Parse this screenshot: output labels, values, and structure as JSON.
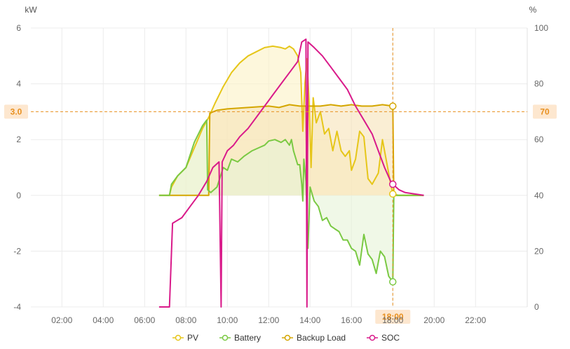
{
  "chart_data": {
    "type": "area",
    "y_left_unit": "kW",
    "y_right_unit": "%",
    "x_ticks": [
      "02:00",
      "04:00",
      "06:00",
      "08:00",
      "10:00",
      "12:00",
      "14:00",
      "16:00",
      "18:00",
      "20:00",
      "22:00"
    ],
    "y_left_ticks": [
      6,
      4,
      2,
      0,
      -2,
      -4
    ],
    "y_right_ticks": [
      100,
      80,
      60,
      40,
      20,
      0
    ],
    "ylim_left": [
      -4,
      6
    ],
    "ylim_right": [
      0,
      100
    ],
    "xlim_hours": [
      0.5,
      24.5
    ],
    "crosshair": {
      "x_label": "18:00",
      "x_hour": 18.0,
      "y_left_label": "3.0",
      "y_left": 3.0,
      "y_right_label": "70",
      "y_right": 70
    },
    "grid": true,
    "legend_position": "bottom",
    "series": [
      {
        "name": "PV",
        "axis": "left",
        "color": "#e6c619",
        "fill": "#fbf2c4",
        "points": [
          [
            6.7,
            0
          ],
          [
            7.2,
            0
          ],
          [
            7.3,
            0.3
          ],
          [
            7.6,
            0.7
          ],
          [
            8.0,
            1.0
          ],
          [
            8.4,
            1.7
          ],
          [
            8.8,
            2.4
          ],
          [
            9.1,
            2.8
          ],
          [
            9.4,
            3.3
          ],
          [
            9.8,
            3.9
          ],
          [
            10.2,
            4.4
          ],
          [
            10.6,
            4.75
          ],
          [
            11.0,
            5.0
          ],
          [
            11.4,
            5.15
          ],
          [
            11.8,
            5.3
          ],
          [
            12.2,
            5.35
          ],
          [
            12.6,
            5.3
          ],
          [
            12.8,
            5.25
          ],
          [
            13.0,
            5.35
          ],
          [
            13.2,
            5.25
          ],
          [
            13.4,
            5.0
          ],
          [
            13.55,
            4.4
          ],
          [
            13.65,
            2.3
          ],
          [
            13.75,
            4.0
          ],
          [
            13.85,
            4.9
          ],
          [
            13.95,
            3.4
          ],
          [
            14.05,
            1.0
          ],
          [
            14.15,
            3.5
          ],
          [
            14.3,
            2.6
          ],
          [
            14.5,
            3.0
          ],
          [
            14.7,
            2.2
          ],
          [
            14.9,
            2.4
          ],
          [
            15.1,
            1.6
          ],
          [
            15.3,
            2.3
          ],
          [
            15.5,
            1.6
          ],
          [
            15.7,
            1.4
          ],
          [
            15.9,
            1.6
          ],
          [
            16.0,
            0.9
          ],
          [
            16.2,
            1.3
          ],
          [
            16.4,
            2.3
          ],
          [
            16.6,
            2.1
          ],
          [
            16.8,
            0.6
          ],
          [
            17.0,
            0.4
          ],
          [
            17.3,
            0.8
          ],
          [
            17.5,
            2.0
          ],
          [
            17.7,
            1.2
          ],
          [
            17.9,
            0.4
          ],
          [
            18.0,
            0.05
          ],
          [
            18.3,
            0
          ],
          [
            19.5,
            0
          ]
        ]
      },
      {
        "name": "Battery",
        "axis": "left",
        "color": "#7ac943",
        "fill": "#e6f4d7",
        "points": [
          [
            6.7,
            0
          ],
          [
            7.2,
            0
          ],
          [
            7.3,
            0.4
          ],
          [
            7.6,
            0.7
          ],
          [
            8.0,
            1.0
          ],
          [
            8.4,
            1.9
          ],
          [
            8.8,
            2.5
          ],
          [
            9.0,
            2.7
          ],
          [
            9.05,
            0.2
          ],
          [
            9.2,
            0.1
          ],
          [
            9.5,
            0.3
          ],
          [
            9.8,
            1.0
          ],
          [
            10.0,
            0.9
          ],
          [
            10.2,
            1.3
          ],
          [
            10.5,
            1.2
          ],
          [
            10.8,
            1.4
          ],
          [
            11.2,
            1.6
          ],
          [
            11.5,
            1.7
          ],
          [
            11.8,
            1.8
          ],
          [
            12.0,
            1.95
          ],
          [
            12.3,
            2.0
          ],
          [
            12.6,
            1.9
          ],
          [
            12.8,
            2.0
          ],
          [
            13.0,
            1.8
          ],
          [
            13.1,
            2.0
          ],
          [
            13.2,
            1.6
          ],
          [
            13.4,
            1.1
          ],
          [
            13.5,
            1.1
          ],
          [
            13.6,
            0.4
          ],
          [
            13.65,
            -0.2
          ],
          [
            13.7,
            1.3
          ],
          [
            13.8,
            0.5
          ],
          [
            13.9,
            -1.9
          ],
          [
            14.0,
            0.3
          ],
          [
            14.2,
            -0.2
          ],
          [
            14.4,
            -0.4
          ],
          [
            14.6,
            -0.9
          ],
          [
            14.8,
            -0.8
          ],
          [
            15.0,
            -1.1
          ],
          [
            15.2,
            -1.2
          ],
          [
            15.4,
            -1.3
          ],
          [
            15.6,
            -1.6
          ],
          [
            15.8,
            -1.6
          ],
          [
            16.0,
            -1.9
          ],
          [
            16.2,
            -2.0
          ],
          [
            16.4,
            -2.5
          ],
          [
            16.6,
            -1.4
          ],
          [
            16.8,
            -2.1
          ],
          [
            17.0,
            -2.3
          ],
          [
            17.2,
            -2.8
          ],
          [
            17.4,
            -2.0
          ],
          [
            17.6,
            -2.2
          ],
          [
            17.8,
            -2.9
          ],
          [
            18.0,
            -3.1
          ],
          [
            18.05,
            0
          ],
          [
            18.3,
            0
          ],
          [
            19.5,
            0
          ]
        ]
      },
      {
        "name": "Backup Load",
        "axis": "left",
        "color": "#d4a600",
        "fill": "#f6e3b7",
        "points": [
          [
            6.7,
            0
          ],
          [
            9.1,
            0
          ],
          [
            9.15,
            2.95
          ],
          [
            9.5,
            3.05
          ],
          [
            10.0,
            3.1
          ],
          [
            11.0,
            3.15
          ],
          [
            12.0,
            3.2
          ],
          [
            12.5,
            3.15
          ],
          [
            13.0,
            3.25
          ],
          [
            13.5,
            3.2
          ],
          [
            13.8,
            3.2
          ],
          [
            13.85,
            0
          ],
          [
            13.9,
            3.2
          ],
          [
            14.5,
            3.2
          ],
          [
            15.0,
            3.25
          ],
          [
            15.5,
            3.2
          ],
          [
            16.0,
            3.25
          ],
          [
            16.5,
            3.2
          ],
          [
            17.0,
            3.2
          ],
          [
            17.5,
            3.25
          ],
          [
            18.0,
            3.2
          ],
          [
            18.05,
            0
          ],
          [
            18.3,
            0
          ],
          [
            19.5,
            0
          ]
        ]
      },
      {
        "name": "SOC",
        "axis": "right",
        "color": "#d91a8a",
        "fill": "none",
        "points": [
          [
            6.7,
            0
          ],
          [
            7.2,
            0
          ],
          [
            7.35,
            30
          ],
          [
            7.8,
            32
          ],
          [
            8.2,
            36
          ],
          [
            8.6,
            40
          ],
          [
            9.0,
            45
          ],
          [
            9.3,
            50
          ],
          [
            9.6,
            52
          ],
          [
            9.7,
            0
          ],
          [
            9.75,
            52
          ],
          [
            10.0,
            56
          ],
          [
            10.3,
            58
          ],
          [
            10.6,
            61
          ],
          [
            11.0,
            64
          ],
          [
            11.4,
            68
          ],
          [
            11.8,
            72
          ],
          [
            12.2,
            76
          ],
          [
            12.6,
            80
          ],
          [
            13.0,
            84
          ],
          [
            13.4,
            88
          ],
          [
            13.6,
            95
          ],
          [
            13.8,
            96
          ],
          [
            13.85,
            0
          ],
          [
            13.9,
            95
          ],
          [
            14.2,
            93
          ],
          [
            14.6,
            90
          ],
          [
            15.0,
            86
          ],
          [
            15.4,
            82
          ],
          [
            15.8,
            78
          ],
          [
            16.2,
            72
          ],
          [
            16.6,
            67
          ],
          [
            17.0,
            62
          ],
          [
            17.3,
            56
          ],
          [
            17.6,
            50
          ],
          [
            17.9,
            45
          ],
          [
            18.0,
            44
          ],
          [
            18.3,
            42
          ],
          [
            18.6,
            41
          ],
          [
            19.5,
            40
          ]
        ]
      }
    ]
  }
}
